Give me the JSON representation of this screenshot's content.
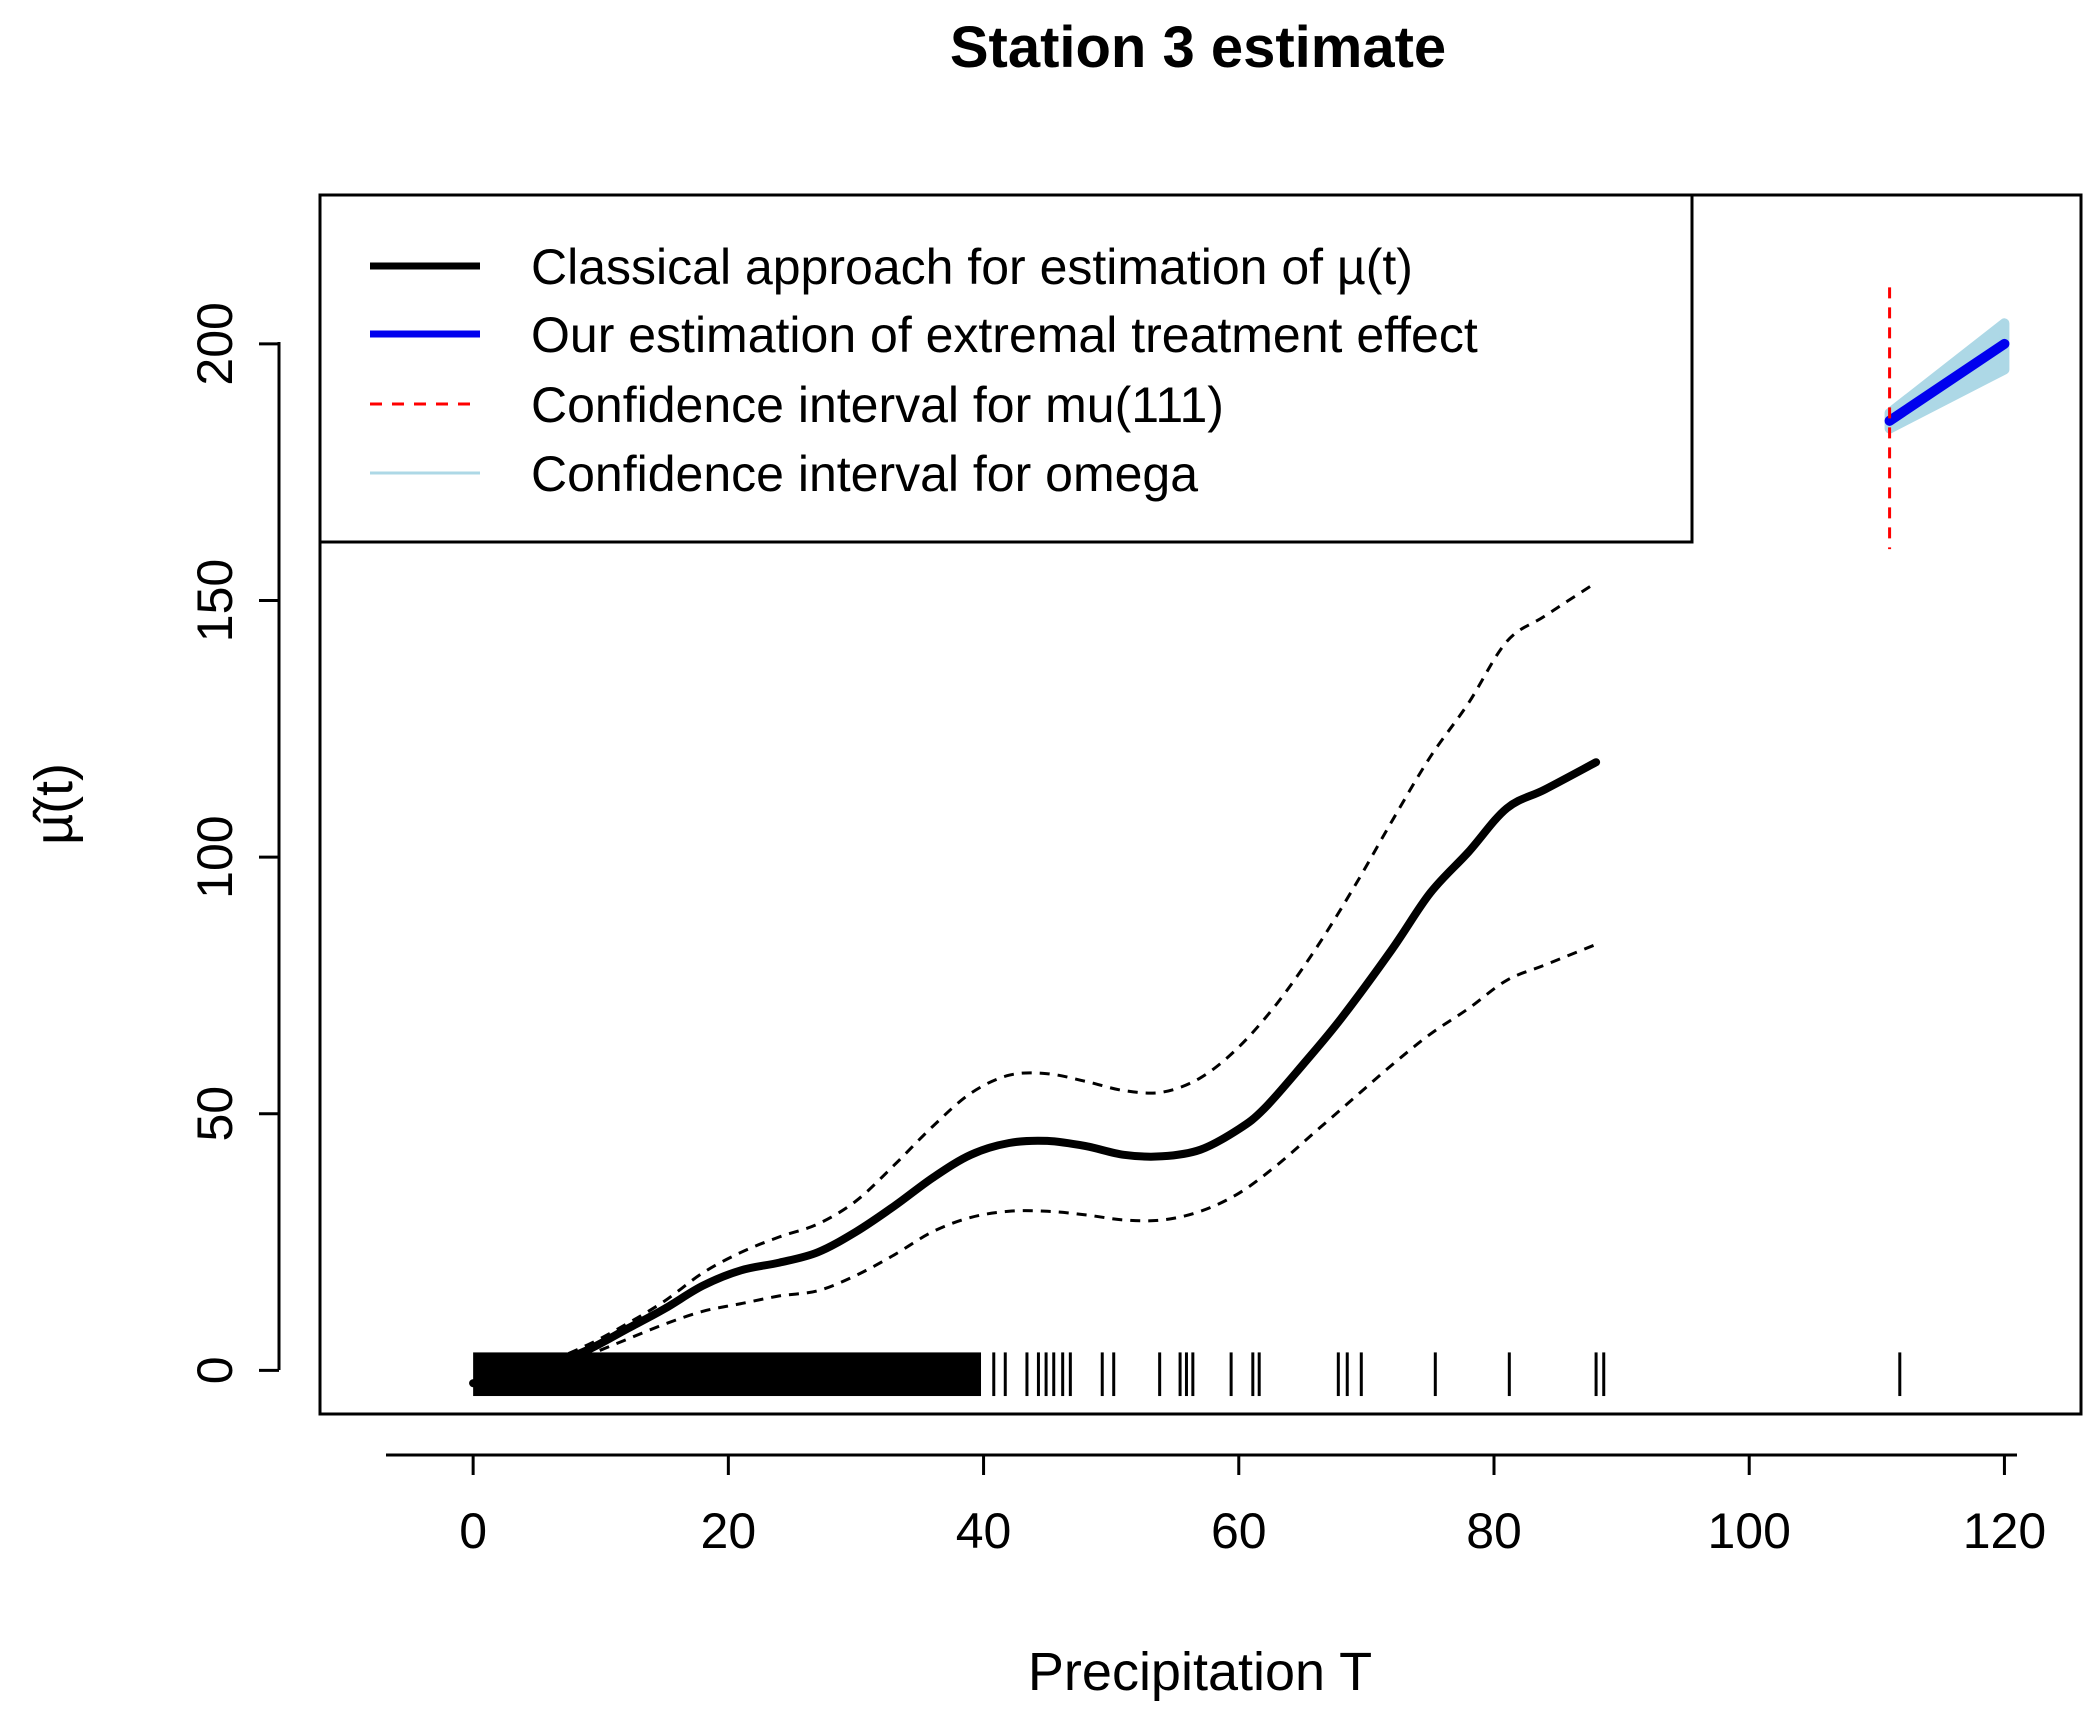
{
  "chart_data": {
    "type": "line",
    "title": "Station 3 estimate",
    "xlabel": "Precipitation T",
    "ylabel": "µ̂(t)",
    "xlim": [
      -12,
      126
    ],
    "ylim": [
      -8.5,
      229
    ],
    "xticks": [
      0,
      20,
      40,
      60,
      80,
      100,
      120
    ],
    "yticks": [
      0,
      50,
      100,
      150,
      200
    ],
    "xtick_labels": [
      "0",
      "20",
      "40",
      "60",
      "80",
      "100",
      "120"
    ],
    "ytick_labels": [
      "0",
      "50",
      "100",
      "150",
      "200"
    ],
    "legend": {
      "position": "top-left",
      "entries": [
        {
          "label": "Classical approach for estimation of µ(t)",
          "color": "#000000",
          "style": "solid-thick"
        },
        {
          "label": "Our estimation of extremal treatment effect",
          "color": "#0000EE",
          "style": "solid-thick"
        },
        {
          "label": "Confidence interval for mu(111)",
          "color": "#FF0000",
          "style": "dashed"
        },
        {
          "label": "Confidence interval for omega",
          "color": "#ADD8E6",
          "style": "solid"
        }
      ]
    },
    "series": [
      {
        "name": "Classical approach for estimation of µ(t)",
        "color": "#000000",
        "x": [
          0,
          3,
          6,
          9,
          12,
          15,
          18,
          21,
          24,
          27,
          30,
          33,
          36,
          39,
          42,
          45,
          48,
          51,
          54,
          57,
          60,
          62,
          65,
          68,
          72,
          75,
          78,
          81,
          84,
          88
        ],
        "y": [
          -2.5,
          -1.5,
          1,
          4,
          8,
          12,
          16.5,
          19.5,
          21,
          23,
          27,
          32,
          37.5,
          42,
          44.3,
          44.7,
          43.7,
          42,
          41.7,
          43,
          47,
          51,
          59.5,
          68.5,
          82,
          93,
          101,
          109.5,
          113.2,
          118.5
        ]
      },
      {
        "name": "Classical CI upper",
        "color": "#000000",
        "x": [
          2,
          6,
          9,
          12,
          15,
          18,
          21,
          24,
          27,
          30,
          33,
          36,
          39,
          42,
          45,
          48,
          51,
          54,
          57,
          60,
          63,
          66,
          69,
          72,
          75,
          78,
          81,
          84,
          88
        ],
        "y": [
          0,
          2,
          5,
          9,
          13.5,
          19,
          23,
          26,
          28.5,
          33,
          40,
          47.5,
          54,
          57.5,
          57.8,
          56.3,
          54.5,
          54.2,
          57,
          63,
          71.5,
          82,
          94,
          107,
          119.5,
          130,
          142,
          147,
          153.5
        ]
      },
      {
        "name": "Classical CI lower",
        "color": "#000000",
        "x": [
          2,
          6,
          9,
          12,
          15,
          18,
          21,
          24,
          27,
          30,
          33,
          36,
          39,
          42,
          45,
          48,
          51,
          54,
          57,
          60,
          63,
          66,
          69,
          72,
          75,
          78,
          81,
          84,
          88
        ],
        "y": [
          -3.5,
          0.5,
          3,
          6,
          9,
          11.5,
          13,
          14.5,
          15.5,
          18.5,
          22.5,
          27,
          29.8,
          31,
          31,
          30.3,
          29.3,
          29.3,
          31,
          34.5,
          40,
          46.5,
          53,
          59.5,
          65.5,
          70.5,
          76,
          79,
          83
        ]
      },
      {
        "name": "Our estimation of extremal treatment effect",
        "color": "#0000EE",
        "x": [
          111,
          120
        ],
        "y": [
          185,
          200
        ]
      }
    ],
    "omega_band": {
      "name": "Confidence interval for omega",
      "color": "#ADD8E6",
      "x": [
        111,
        120
      ],
      "lower": [
        183.5,
        195
      ],
      "upper": [
        186.5,
        204
      ]
    },
    "mu111_interval": {
      "name": "Confidence interval for mu(111)",
      "color": "#FF0000",
      "x": 111,
      "lower": 160,
      "upper": 211
    },
    "rug": {
      "dense_range": [
        0,
        39.8
      ],
      "x": [
        40.8,
        41.7,
        43.4,
        44.3,
        44.9,
        45.5,
        46.2,
        46.8,
        49.3,
        50.2,
        53.8,
        55.4,
        55.9,
        56.4,
        59.4,
        61.1,
        61.6,
        67.8,
        68.5,
        69.6,
        75.4,
        81.2,
        88.0,
        88.6,
        111.8
      ]
    }
  }
}
